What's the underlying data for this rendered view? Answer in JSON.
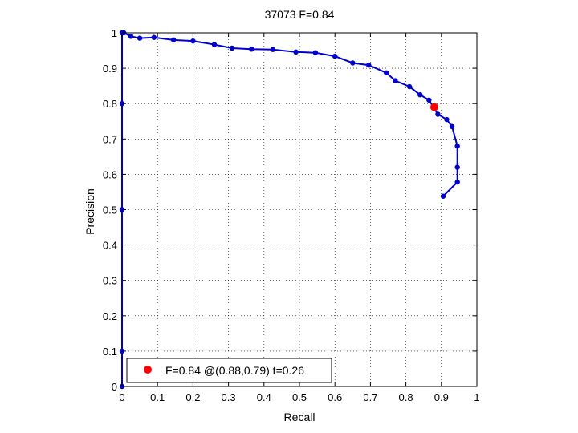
{
  "chart_data": {
    "type": "line",
    "title": "37073 F=0.84",
    "xlabel": "Recall",
    "ylabel": "Precision",
    "xlim": [
      0,
      1
    ],
    "ylim": [
      0,
      1
    ],
    "xticks": [
      "0",
      "0.1",
      "0.2",
      "0.3",
      "0.4",
      "0.5",
      "0.6",
      "0.7",
      "0.8",
      "0.9",
      "1"
    ],
    "yticks": [
      "0",
      "0.1",
      "0.2",
      "0.3",
      "0.4",
      "0.5",
      "0.6",
      "0.7",
      "0.8",
      "0.9",
      "1"
    ],
    "grid": true,
    "grid_style": "dotted",
    "legend_position": "bottom-left",
    "colors": {
      "curve": "#0000cc",
      "best_point": "#ff0000"
    },
    "series": [
      {
        "x": [
          0.0,
          0.0,
          0.0,
          0.0,
          0.0,
          0.005,
          0.025,
          0.05,
          0.09,
          0.145,
          0.2,
          0.26,
          0.31,
          0.365,
          0.425,
          0.49,
          0.545,
          0.6,
          0.65,
          0.695,
          0.745,
          0.77,
          0.81,
          0.84,
          0.865,
          0.89,
          0.915,
          0.93,
          0.945,
          0.945,
          0.945,
          0.905
        ],
        "y": [
          0.0,
          0.1,
          0.5,
          0.8,
          1.0,
          1.0,
          0.99,
          0.985,
          0.987,
          0.98,
          0.977,
          0.967,
          0.957,
          0.954,
          0.953,
          0.946,
          0.944,
          0.934,
          0.915,
          0.909,
          0.887,
          0.865,
          0.848,
          0.825,
          0.81,
          0.77,
          0.755,
          0.735,
          0.68,
          0.62,
          0.578,
          0.538
        ]
      }
    ],
    "best_point": {
      "x": 0.88,
      "y": 0.79,
      "label": "F=0.84 @(0.88,0.79) t=0.26"
    }
  }
}
